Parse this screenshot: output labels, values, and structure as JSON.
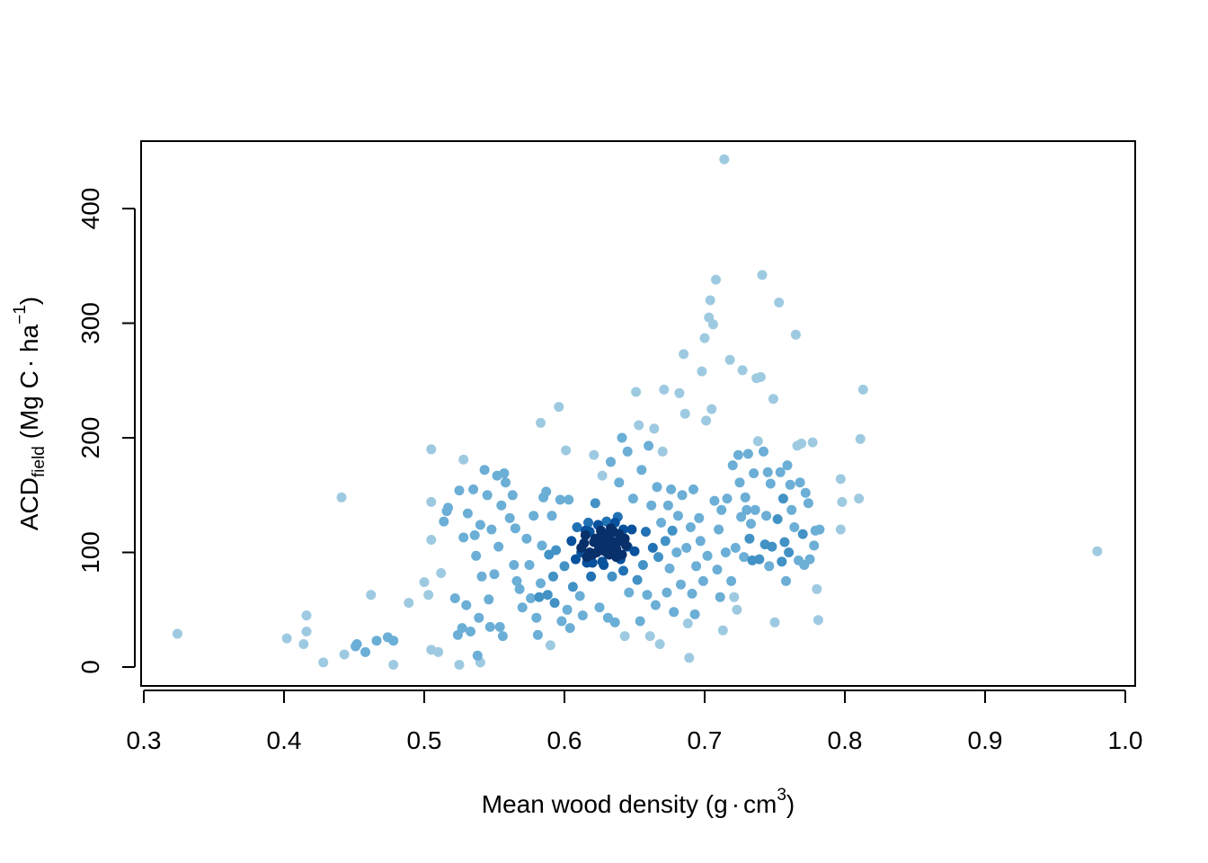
{
  "chart_data": {
    "type": "scatter",
    "title": "",
    "xlabel": {
      "text": "Mean wood density (g",
      "dot": "·",
      "unit": "cm",
      "exp": "3",
      "close": ")"
    },
    "ylabel": {
      "main": "ACD",
      "sub": "field",
      "rest": " (Mg C",
      "dot": "·",
      "unit": " ha",
      "exp": "−1",
      "close": ")"
    },
    "xlim": [
      0.3,
      1.0
    ],
    "ylim": [
      0,
      450
    ],
    "x_ticks": [
      0.3,
      0.4,
      0.5,
      0.6,
      0.7,
      0.8,
      0.9,
      1.0
    ],
    "x_tick_labels": [
      "0.3",
      "0.4",
      "0.5",
      "0.6",
      "0.7",
      "0.8",
      "0.9",
      "1.0"
    ],
    "y_ticks": [
      0,
      100,
      200,
      300,
      400
    ],
    "y_tick_labels": [
      "0",
      "100",
      "200",
      "300",
      "400"
    ],
    "grid": false,
    "legend": "none",
    "color_scale": [
      "#9ecae1",
      "#6baed6",
      "#4292c6",
      "#2171b5",
      "#08519c",
      "#08306b"
    ],
    "points": [
      [
        0.324,
        29
      ],
      [
        0.402,
        25
      ],
      [
        0.414,
        20
      ],
      [
        0.416,
        31
      ],
      [
        0.416,
        45
      ],
      [
        0.428,
        4
      ],
      [
        0.441,
        148
      ],
      [
        0.443,
        11
      ],
      [
        0.451,
        18
      ],
      [
        0.452,
        20
      ],
      [
        0.458,
        13
      ],
      [
        0.462,
        63
      ],
      [
        0.466,
        23
      ],
      [
        0.474,
        26
      ],
      [
        0.478,
        2
      ],
      [
        0.478,
        23
      ],
      [
        0.489,
        56
      ],
      [
        0.5,
        74
      ],
      [
        0.503,
        63
      ],
      [
        0.505,
        190
      ],
      [
        0.505,
        144
      ],
      [
        0.505,
        111
      ],
      [
        0.505,
        15
      ],
      [
        0.51,
        13
      ],
      [
        0.512,
        82
      ],
      [
        0.514,
        127
      ],
      [
        0.516,
        136
      ],
      [
        0.517,
        139
      ],
      [
        0.522,
        60
      ],
      [
        0.524,
        28
      ],
      [
        0.525,
        2
      ],
      [
        0.525,
        154
      ],
      [
        0.527,
        34
      ],
      [
        0.528,
        181
      ],
      [
        0.528,
        113
      ],
      [
        0.53,
        54
      ],
      [
        0.531,
        134
      ],
      [
        0.533,
        31
      ],
      [
        0.535,
        155
      ],
      [
        0.536,
        115
      ],
      [
        0.537,
        97
      ],
      [
        0.538,
        10
      ],
      [
        0.539,
        43
      ],
      [
        0.54,
        4
      ],
      [
        0.54,
        124
      ],
      [
        0.541,
        79
      ],
      [
        0.543,
        172
      ],
      [
        0.545,
        150
      ],
      [
        0.546,
        59
      ],
      [
        0.547,
        35
      ],
      [
        0.548,
        120
      ],
      [
        0.55,
        81
      ],
      [
        0.552,
        167
      ],
      [
        0.553,
        105
      ],
      [
        0.554,
        35
      ],
      [
        0.555,
        141
      ],
      [
        0.556,
        27
      ],
      [
        0.557,
        169
      ],
      [
        0.558,
        161
      ],
      [
        0.561,
        130
      ],
      [
        0.563,
        150
      ],
      [
        0.564,
        89
      ],
      [
        0.565,
        121
      ],
      [
        0.566,
        75
      ],
      [
        0.568,
        68
      ],
      [
        0.57,
        52
      ],
      [
        0.573,
        112
      ],
      [
        0.575,
        89
      ],
      [
        0.576,
        60
      ],
      [
        0.578,
        132
      ],
      [
        0.58,
        43
      ],
      [
        0.581,
        28
      ],
      [
        0.582,
        61
      ],
      [
        0.583,
        73
      ],
      [
        0.583,
        213
      ],
      [
        0.584,
        106
      ],
      [
        0.585,
        148
      ],
      [
        0.587,
        153
      ],
      [
        0.588,
        63
      ],
      [
        0.589,
        98
      ],
      [
        0.59,
        19
      ],
      [
        0.591,
        132
      ],
      [
        0.592,
        79
      ],
      [
        0.593,
        56
      ],
      [
        0.594,
        102
      ],
      [
        0.596,
        227
      ],
      [
        0.597,
        146
      ],
      [
        0.598,
        40
      ],
      [
        0.6,
        88
      ],
      [
        0.601,
        189
      ],
      [
        0.602,
        50
      ],
      [
        0.603,
        146
      ],
      [
        0.604,
        34
      ],
      [
        0.605,
        110
      ],
      [
        0.606,
        70
      ],
      [
        0.608,
        94
      ],
      [
        0.609,
        122
      ],
      [
        0.611,
        62
      ],
      [
        0.612,
        100
      ],
      [
        0.613,
        45
      ],
      [
        0.615,
        115
      ],
      [
        0.616,
        91
      ],
      [
        0.617,
        126
      ],
      [
        0.619,
        79
      ],
      [
        0.62,
        98
      ],
      [
        0.621,
        185
      ],
      [
        0.622,
        143
      ],
      [
        0.624,
        107
      ],
      [
        0.625,
        52
      ],
      [
        0.626,
        119
      ],
      [
        0.627,
        167
      ],
      [
        0.628,
        89
      ],
      [
        0.629,
        101
      ],
      [
        0.63,
        127
      ],
      [
        0.631,
        43
      ],
      [
        0.632,
        114
      ],
      [
        0.633,
        179
      ],
      [
        0.634,
        79
      ],
      [
        0.635,
        118
      ],
      [
        0.636,
        39
      ],
      [
        0.637,
        96
      ],
      [
        0.638,
        131
      ],
      [
        0.639,
        161
      ],
      [
        0.64,
        110
      ],
      [
        0.641,
        200
      ],
      [
        0.642,
        84
      ],
      [
        0.643,
        27
      ],
      [
        0.644,
        106
      ],
      [
        0.645,
        188
      ],
      [
        0.646,
        65
      ],
      [
        0.648,
        120
      ],
      [
        0.649,
        147
      ],
      [
        0.65,
        101
      ],
      [
        0.651,
        240
      ],
      [
        0.652,
        76
      ],
      [
        0.653,
        211
      ],
      [
        0.654,
        40
      ],
      [
        0.655,
        172
      ],
      [
        0.656,
        89
      ],
      [
        0.658,
        118
      ],
      [
        0.659,
        63
      ],
      [
        0.66,
        193
      ],
      [
        0.661,
        27
      ],
      [
        0.662,
        141
      ],
      [
        0.663,
        104
      ],
      [
        0.664,
        208
      ],
      [
        0.665,
        54
      ],
      [
        0.666,
        157
      ],
      [
        0.667,
        96
      ],
      [
        0.668,
        20
      ],
      [
        0.669,
        126
      ],
      [
        0.67,
        188
      ],
      [
        0.671,
        242
      ],
      [
        0.672,
        110
      ],
      [
        0.673,
        65
      ],
      [
        0.674,
        141
      ],
      [
        0.675,
        86
      ],
      [
        0.676,
        155
      ],
      [
        0.677,
        119
      ],
      [
        0.678,
        48
      ],
      [
        0.68,
        100
      ],
      [
        0.681,
        132
      ],
      [
        0.682,
        239
      ],
      [
        0.683,
        72
      ],
      [
        0.684,
        150
      ],
      [
        0.685,
        273
      ],
      [
        0.686,
        221
      ],
      [
        0.687,
        104
      ],
      [
        0.688,
        38
      ],
      [
        0.689,
        8
      ],
      [
        0.69,
        122
      ],
      [
        0.691,
        64
      ],
      [
        0.692,
        155
      ],
      [
        0.693,
        46
      ],
      [
        0.694,
        88
      ],
      [
        0.696,
        130
      ],
      [
        0.697,
        110
      ],
      [
        0.698,
        258
      ],
      [
        0.699,
        75
      ],
      [
        0.7,
        287
      ],
      [
        0.701,
        215
      ],
      [
        0.702,
        97
      ],
      [
        0.703,
        305
      ],
      [
        0.704,
        320
      ],
      [
        0.705,
        225
      ],
      [
        0.706,
        299
      ],
      [
        0.707,
        145
      ],
      [
        0.708,
        338
      ],
      [
        0.709,
        85
      ],
      [
        0.71,
        120
      ],
      [
        0.711,
        61
      ],
      [
        0.712,
        137
      ],
      [
        0.713,
        32
      ],
      [
        0.714,
        443
      ],
      [
        0.715,
        100
      ],
      [
        0.716,
        147
      ],
      [
        0.718,
        268
      ],
      [
        0.719,
        75
      ],
      [
        0.72,
        176
      ],
      [
        0.721,
        61
      ],
      [
        0.722,
        104
      ],
      [
        0.723,
        50
      ],
      [
        0.724,
        185
      ],
      [
        0.725,
        161
      ],
      [
        0.726,
        131
      ],
      [
        0.727,
        259
      ],
      [
        0.728,
        96
      ],
      [
        0.729,
        148
      ],
      [
        0.73,
        137
      ],
      [
        0.731,
        186
      ],
      [
        0.732,
        112
      ],
      [
        0.733,
        125
      ],
      [
        0.734,
        93
      ],
      [
        0.735,
        169
      ],
      [
        0.736,
        137
      ],
      [
        0.737,
        252
      ],
      [
        0.738,
        197
      ],
      [
        0.739,
        94
      ],
      [
        0.74,
        253
      ],
      [
        0.741,
        342
      ],
      [
        0.742,
        188
      ],
      [
        0.743,
        107
      ],
      [
        0.744,
        132
      ],
      [
        0.745,
        170
      ],
      [
        0.746,
        88
      ],
      [
        0.747,
        160
      ],
      [
        0.748,
        105
      ],
      [
        0.749,
        234
      ],
      [
        0.75,
        39
      ],
      [
        0.752,
        129
      ],
      [
        0.753,
        318
      ],
      [
        0.754,
        170
      ],
      [
        0.755,
        92
      ],
      [
        0.756,
        147
      ],
      [
        0.757,
        109
      ],
      [
        0.758,
        75
      ],
      [
        0.759,
        176
      ],
      [
        0.76,
        100
      ],
      [
        0.761,
        159
      ],
      [
        0.762,
        137
      ],
      [
        0.764,
        122
      ],
      [
        0.765,
        290
      ],
      [
        0.766,
        193
      ],
      [
        0.767,
        93
      ],
      [
        0.768,
        161
      ],
      [
        0.769,
        195
      ],
      [
        0.77,
        116
      ],
      [
        0.771,
        89
      ],
      [
        0.772,
        152
      ],
      [
        0.774,
        143
      ],
      [
        0.775,
        94
      ],
      [
        0.777,
        196
      ],
      [
        0.778,
        106
      ],
      [
        0.779,
        119
      ],
      [
        0.78,
        68
      ],
      [
        0.781,
        41
      ],
      [
        0.782,
        120
      ],
      [
        0.797,
        120
      ],
      [
        0.797,
        164
      ],
      [
        0.798,
        144
      ],
      [
        0.81,
        147
      ],
      [
        0.811,
        199
      ],
      [
        0.813,
        242
      ],
      [
        0.98,
        101
      ],
      [
        0.612,
        104
      ],
      [
        0.614,
        108
      ],
      [
        0.616,
        96
      ],
      [
        0.618,
        118
      ],
      [
        0.621,
        109
      ],
      [
        0.623,
        100
      ],
      [
        0.625,
        113
      ],
      [
        0.627,
        92
      ],
      [
        0.629,
        105
      ],
      [
        0.631,
        99
      ],
      [
        0.633,
        121
      ],
      [
        0.635,
        109
      ],
      [
        0.637,
        103
      ],
      [
        0.639,
        116
      ],
      [
        0.641,
        98
      ],
      [
        0.643,
        112
      ],
      [
        0.645,
        105
      ],
      [
        0.628,
        116
      ],
      [
        0.624,
        124
      ],
      [
        0.634,
        106
      ],
      [
        0.62,
        91
      ],
      [
        0.642,
        120
      ],
      [
        0.615,
        119
      ],
      [
        0.63,
        110
      ],
      [
        0.618,
        100
      ],
      [
        0.64,
        94
      ],
      [
        0.626,
        102
      ],
      [
        0.636,
        126
      ],
      [
        0.622,
        112
      ],
      [
        0.632,
        98
      ]
    ]
  }
}
